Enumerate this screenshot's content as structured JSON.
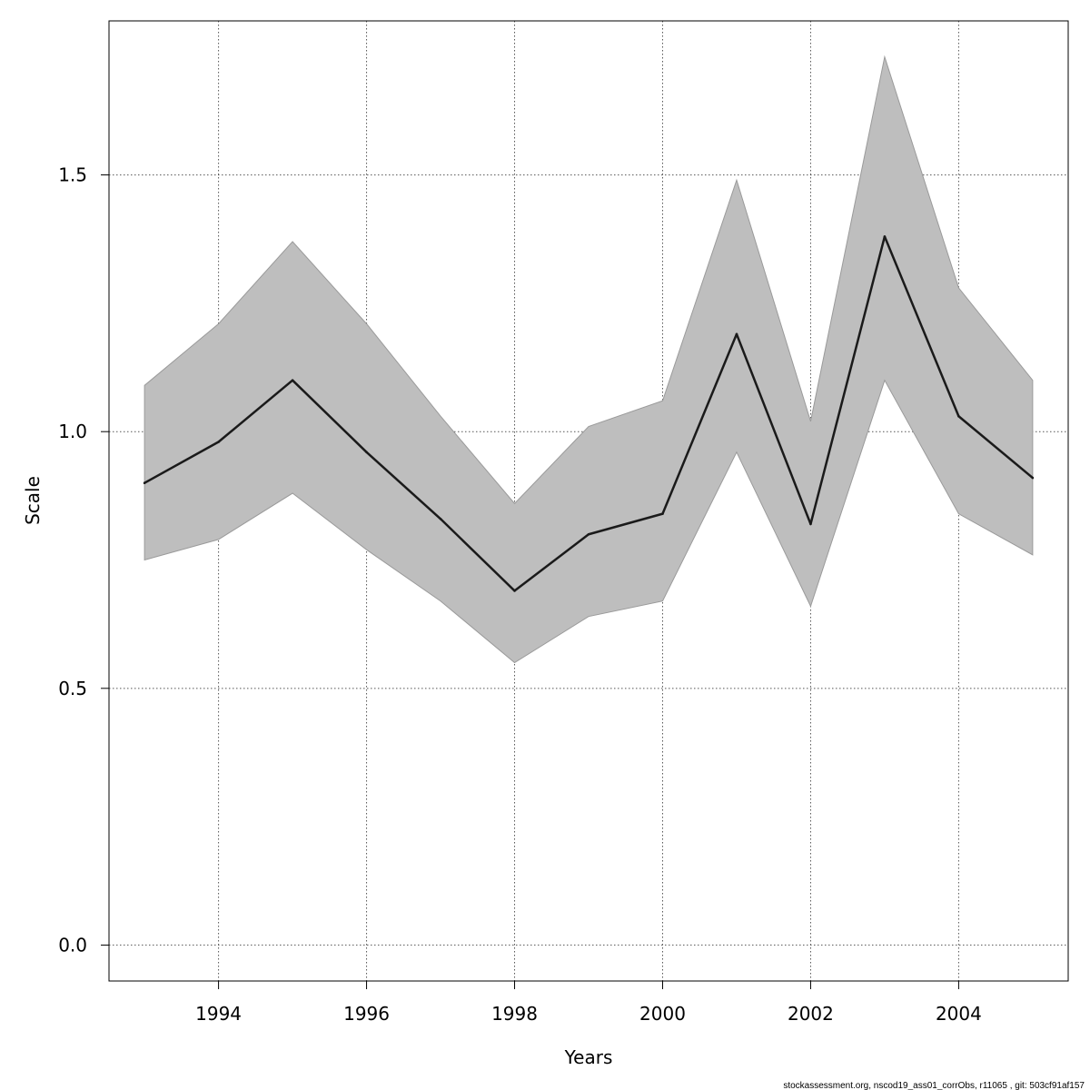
{
  "chart_data": {
    "type": "line",
    "xlabel": "Years",
    "ylabel": "Scale",
    "xlim": [
      1992.52,
      2005.48
    ],
    "ylim": [
      -0.07,
      1.8
    ],
    "x_ticks": [
      1994,
      1996,
      1998,
      2000,
      2002,
      2004
    ],
    "x_tick_labels": [
      "1994",
      "1996",
      "1998",
      "2000",
      "2002",
      "2004"
    ],
    "y_ticks": [
      0.0,
      0.5,
      1.0,
      1.5
    ],
    "y_tick_labels": [
      "0.0",
      "0.5",
      "1.0",
      "1.5"
    ],
    "grid": true,
    "x": [
      1993,
      1994,
      1995,
      1996,
      1997,
      1998,
      1999,
      2000,
      2001,
      2002,
      2003,
      2004,
      2005
    ],
    "series": [
      {
        "values": [
          0.9,
          0.98,
          1.1,
          0.96,
          0.83,
          0.69,
          0.8,
          0.84,
          1.19,
          0.82,
          1.38,
          1.03,
          0.91
        ],
        "lower": [
          0.75,
          0.79,
          0.88,
          0.77,
          0.67,
          0.55,
          0.64,
          0.67,
          0.96,
          0.66,
          1.1,
          0.84,
          0.76
        ],
        "upper": [
          1.09,
          1.21,
          1.37,
          1.21,
          1.03,
          0.86,
          1.01,
          1.06,
          1.49,
          1.02,
          1.73,
          1.28,
          1.1
        ]
      }
    ],
    "colors": {
      "band_fill": "#bebebe",
      "band_stroke": "#9a9a9a",
      "line": "#1a1a1a",
      "grid": "#555555",
      "frame": "#000000"
    }
  },
  "footer": {
    "note": "stockassessment.org, nscod19_ass01_corrObs, r11065 , git: 503cf91af157"
  }
}
